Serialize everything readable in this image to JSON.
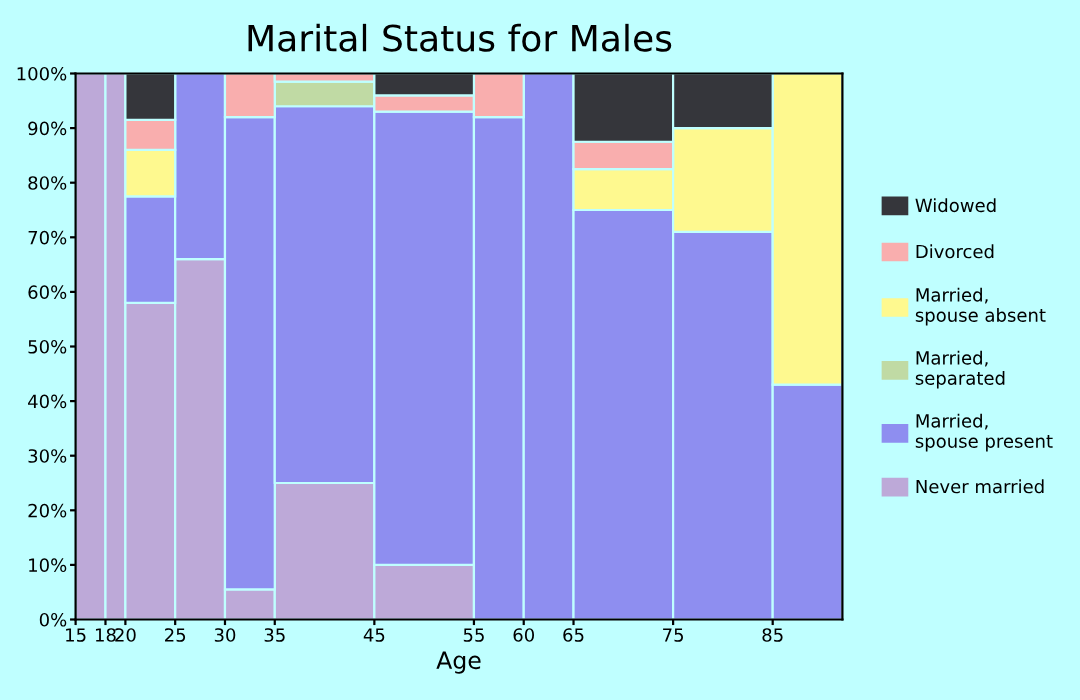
{
  "chart_data": {
    "type": "bar",
    "title": "Marital Status for Males",
    "xlabel": "Age",
    "stacked": true,
    "x": [
      16.5,
      19,
      22.5,
      27.5,
      32.5,
      40,
      50,
      57.5,
      62.5,
      70,
      80,
      88.5
    ],
    "series": [
      {
        "name": "Never married",
        "color": "#bda9d8",
        "values": [
          100,
          100,
          58,
          66,
          5.5,
          25,
          10,
          null,
          null,
          null,
          null,
          null
        ]
      },
      {
        "name": "Married, spouse present",
        "color": "#8e8ef0",
        "values": [
          null,
          null,
          19.5,
          34,
          86.5,
          69,
          83,
          92,
          100,
          75,
          71,
          43
        ]
      },
      {
        "name": "Married, separated",
        "color": "#c0daa4",
        "values": [
          null,
          null,
          null,
          null,
          null,
          4.5,
          null,
          null,
          null,
          null,
          null,
          null
        ]
      },
      {
        "name": "Married, spouse absent",
        "color": "#fef98f",
        "values": [
          null,
          null,
          8.5,
          null,
          null,
          null,
          null,
          null,
          null,
          7.5,
          19,
          57
        ]
      },
      {
        "name": "Divorced",
        "color": "#f9aeae",
        "values": [
          null,
          null,
          5.5,
          null,
          8,
          1.5,
          3,
          8,
          null,
          5,
          null,
          null
        ]
      },
      {
        "name": "Widowed",
        "color": "#35363b",
        "values": [
          null,
          null,
          8.5,
          null,
          null,
          null,
          4,
          null,
          null,
          12.5,
          10,
          null
        ]
      }
    ],
    "xlim": [
      15,
      92
    ],
    "xticks": [
      15,
      18,
      20,
      25,
      30,
      35,
      45,
      55,
      60,
      65,
      75,
      85
    ],
    "ylim": [
      0,
      100
    ],
    "yticks": [
      {
        "value": 0,
        "label": "0%"
      },
      {
        "value": 10,
        "label": "10%"
      },
      {
        "value": 20,
        "label": "20%"
      },
      {
        "value": 30,
        "label": "30%"
      },
      {
        "value": 40,
        "label": "40%"
      },
      {
        "value": 50,
        "label": "50%"
      },
      {
        "value": 60,
        "label": "60%"
      },
      {
        "value": 70,
        "label": "70%"
      },
      {
        "value": 80,
        "label": "80%"
      },
      {
        "value": 90,
        "label": "90%"
      },
      {
        "value": 100,
        "label": "100%"
      }
    ],
    "grid": false,
    "legend": "right"
  }
}
